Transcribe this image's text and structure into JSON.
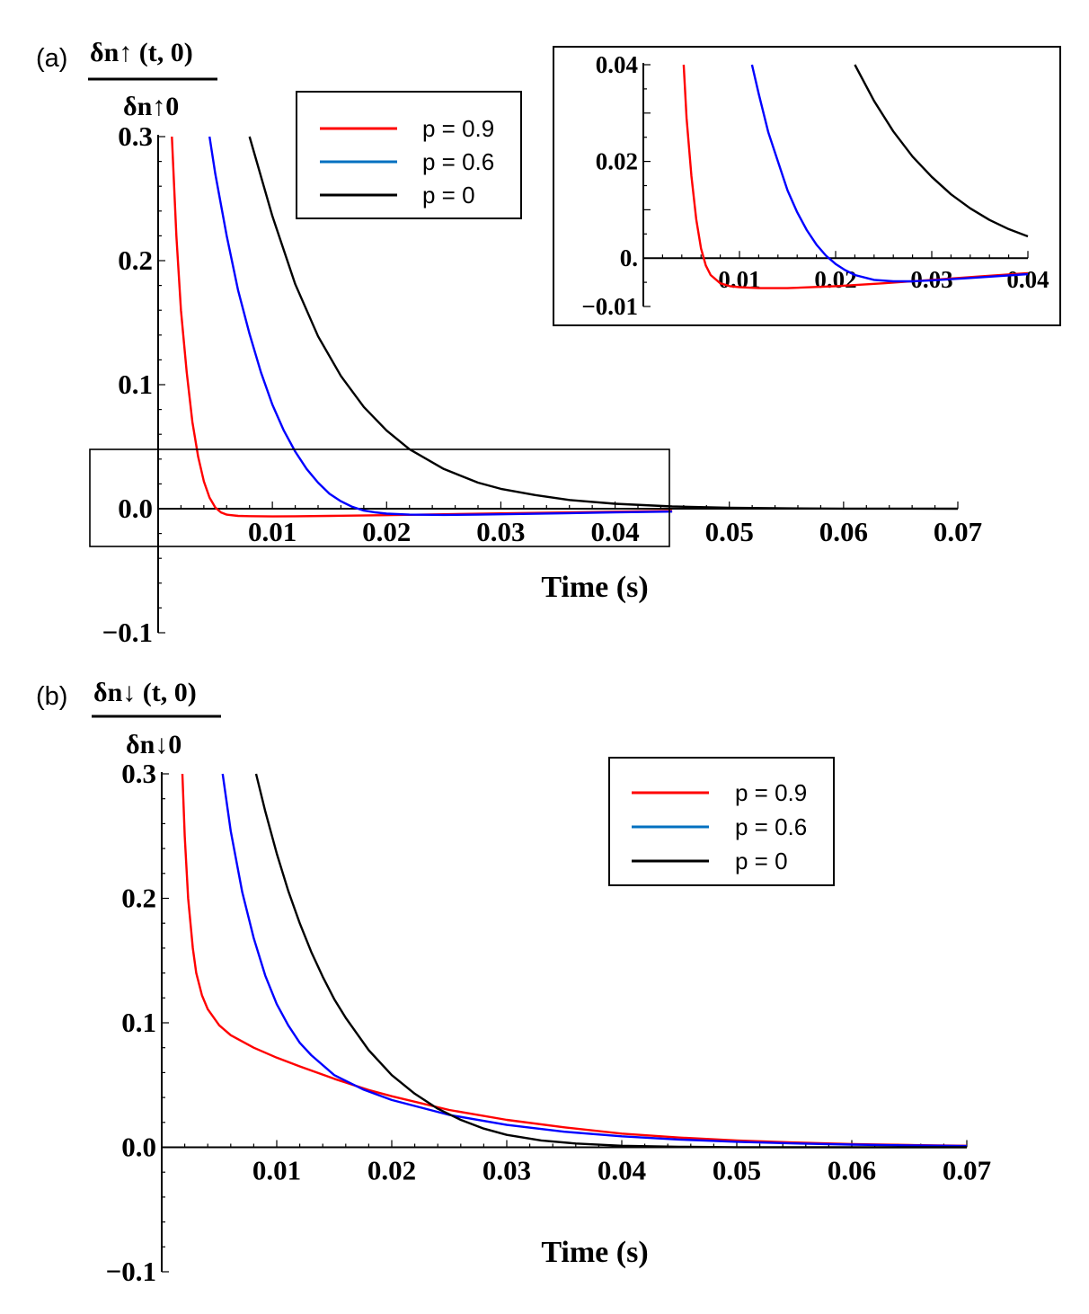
{
  "chart_data": [
    {
      "type": "line",
      "id": "panel-a",
      "panel_label": "(a)",
      "ylabel": {
        "numerator": "δn↑ (t, 0)",
        "denominator": "δn↑0"
      },
      "xlabel": "Time (s)",
      "xlim": [
        0,
        0.07
      ],
      "ylim": [
        -0.1,
        0.3
      ],
      "x_ticks": [
        "0.01",
        "0.02",
        "0.03",
        "0.04",
        "0.05",
        "0.06",
        "0.07"
      ],
      "y_ticks": [
        "0.3",
        "0.2",
        "0.1",
        "0.0",
        "−0.1"
      ],
      "legend": {
        "position": "top-center",
        "entries": [
          "p = 0.9",
          "p = 0.6",
          "p = 0"
        ]
      },
      "zoom_box": {
        "x_range": [
          -0.006,
          0.045
        ],
        "y_range": [
          -0.03,
          0.048
        ]
      },
      "series": [
        {
          "name": "p = 0.9",
          "color": "#ff0000",
          "x": [
            0.0012,
            0.0016,
            0.002,
            0.0025,
            0.003,
            0.0035,
            0.004,
            0.0045,
            0.005,
            0.0055,
            0.006,
            0.007,
            0.008,
            0.01,
            0.012,
            0.015,
            0.02,
            0.025,
            0.03,
            0.035,
            0.04,
            0.045
          ],
          "y": [
            0.3,
            0.22,
            0.16,
            0.11,
            0.07,
            0.042,
            0.022,
            0.009,
            0.001,
            -0.003,
            -0.0048,
            -0.0058,
            -0.006,
            -0.0062,
            -0.0061,
            -0.0058,
            -0.0052,
            -0.0045,
            -0.0038,
            -0.0031,
            -0.0024,
            -0.0018
          ]
        },
        {
          "name": "p = 0.6",
          "color": "#0000ff",
          "x": [
            0.0045,
            0.005,
            0.006,
            0.007,
            0.008,
            0.009,
            0.01,
            0.011,
            0.012,
            0.013,
            0.014,
            0.015,
            0.016,
            0.017,
            0.018,
            0.019,
            0.02,
            0.022,
            0.025,
            0.028,
            0.03,
            0.035,
            0.04,
            0.045
          ],
          "y": [
            0.3,
            0.27,
            0.22,
            0.176,
            0.141,
            0.11,
            0.084,
            0.063,
            0.046,
            0.032,
            0.021,
            0.012,
            0.006,
            0.0015,
            -0.0015,
            -0.003,
            -0.004,
            -0.0048,
            -0.005,
            -0.0048,
            -0.0045,
            -0.0038,
            -0.003,
            -0.0023
          ]
        },
        {
          "name": "p = 0",
          "color": "#000000",
          "x": [
            0.008,
            0.01,
            0.012,
            0.014,
            0.016,
            0.018,
            0.02,
            0.022,
            0.025,
            0.028,
            0.03,
            0.033,
            0.036,
            0.04,
            0.045,
            0.05,
            0.055,
            0.06,
            0.07
          ],
          "y": [
            0.3,
            0.236,
            0.181,
            0.139,
            0.107,
            0.082,
            0.063,
            0.048,
            0.032,
            0.021,
            0.016,
            0.011,
            0.007,
            0.004,
            0.0018,
            0.0008,
            0.0003,
            0.0001,
            0.0
          ]
        }
      ]
    },
    {
      "type": "line",
      "id": "panel-a-inset",
      "xlim": [
        0.0,
        0.04
      ],
      "ylim": [
        -0.01,
        0.04
      ],
      "x_ticks": [
        "0.01",
        "0.02",
        "0.03",
        "0.04"
      ],
      "y_ticks": [
        "0.04",
        "0.02",
        "0.",
        "−0.01"
      ],
      "series": [
        {
          "name": "p = 0.9",
          "color": "#ff0000",
          "x": [
            0.0042,
            0.0045,
            0.005,
            0.0055,
            0.006,
            0.0065,
            0.007,
            0.008,
            0.009,
            0.01,
            0.012,
            0.015,
            0.02,
            0.025,
            0.03,
            0.035,
            0.04
          ],
          "y": [
            0.04,
            0.029,
            0.017,
            0.008,
            0.002,
            -0.0015,
            -0.0035,
            -0.0052,
            -0.0058,
            -0.006,
            -0.0062,
            -0.0062,
            -0.0058,
            -0.0052,
            -0.0045,
            -0.0038,
            -0.0031
          ]
        },
        {
          "name": "p = 0.6",
          "color": "#0000ff",
          "x": [
            0.0113,
            0.012,
            0.013,
            0.014,
            0.015,
            0.016,
            0.017,
            0.018,
            0.019,
            0.02,
            0.021,
            0.022,
            0.024,
            0.026,
            0.028,
            0.03,
            0.034,
            0.04
          ],
          "y": [
            0.04,
            0.034,
            0.026,
            0.02,
            0.014,
            0.0095,
            0.0058,
            0.0028,
            0.0005,
            -0.0012,
            -0.0025,
            -0.0035,
            -0.0045,
            -0.0048,
            -0.0048,
            -0.0046,
            -0.0041,
            -0.0033
          ]
        },
        {
          "name": "p = 0",
          "color": "#000000",
          "x": [
            0.022,
            0.024,
            0.026,
            0.028,
            0.03,
            0.032,
            0.034,
            0.036,
            0.038,
            0.04
          ],
          "y": [
            0.04,
            0.0325,
            0.0262,
            0.021,
            0.0168,
            0.0132,
            0.0103,
            0.0079,
            0.006,
            0.0045
          ]
        }
      ]
    },
    {
      "type": "line",
      "id": "panel-b",
      "panel_label": "(b)",
      "ylabel": {
        "numerator": "δn↓ (t, 0)",
        "denominator": "δn↓0"
      },
      "xlabel": "Time (s)",
      "xlim": [
        0,
        0.07
      ],
      "ylim": [
        -0.1,
        0.3
      ],
      "x_ticks": [
        "0.01",
        "0.02",
        "0.03",
        "0.04",
        "0.05",
        "0.06",
        "0.07"
      ],
      "y_ticks": [
        "0.3",
        "0.2",
        "0.1",
        "0.0",
        "−0.1"
      ],
      "legend": {
        "position": "top-right",
        "entries": [
          "p = 0.9",
          "p = 0.6",
          "p = 0"
        ]
      },
      "series": [
        {
          "name": "p = 0.9",
          "color": "#ff0000",
          "x": [
            0.0018,
            0.002,
            0.0023,
            0.0027,
            0.003,
            0.0035,
            0.004,
            0.005,
            0.006,
            0.008,
            0.01,
            0.012,
            0.015,
            0.018,
            0.02,
            0.025,
            0.03,
            0.035,
            0.04,
            0.045,
            0.05,
            0.055,
            0.06,
            0.065,
            0.07
          ],
          "y": [
            0.3,
            0.25,
            0.2,
            0.16,
            0.14,
            0.122,
            0.111,
            0.098,
            0.09,
            0.08,
            0.072,
            0.065,
            0.055,
            0.046,
            0.041,
            0.03,
            0.022,
            0.016,
            0.011,
            0.0078,
            0.0055,
            0.0038,
            0.0026,
            0.0018,
            0.0012
          ]
        },
        {
          "name": "p = 0.6",
          "color": "#0000ff",
          "x": [
            0.0053,
            0.006,
            0.007,
            0.008,
            0.009,
            0.01,
            0.011,
            0.012,
            0.013,
            0.015,
            0.0175,
            0.02,
            0.025,
            0.03,
            0.035,
            0.04,
            0.045,
            0.05,
            0.055,
            0.06,
            0.065,
            0.07
          ],
          "y": [
            0.3,
            0.254,
            0.205,
            0.168,
            0.138,
            0.115,
            0.098,
            0.084,
            0.074,
            0.058,
            0.0465,
            0.038,
            0.026,
            0.018,
            0.0125,
            0.0088,
            0.0062,
            0.0044,
            0.0031,
            0.0022,
            0.0015,
            0.001
          ]
        },
        {
          "name": "p = 0",
          "color": "#000000",
          "x": [
            0.0082,
            0.009,
            0.01,
            0.011,
            0.012,
            0.013,
            0.014,
            0.015,
            0.016,
            0.018,
            0.02,
            0.022,
            0.024,
            0.026,
            0.028,
            0.03,
            0.033,
            0.036,
            0.04,
            0.045,
            0.05,
            0.055,
            0.06,
            0.07
          ],
          "y": [
            0.3,
            0.27,
            0.236,
            0.206,
            0.18,
            0.157,
            0.137,
            0.119,
            0.104,
            0.078,
            0.058,
            0.043,
            0.031,
            0.022,
            0.015,
            0.01,
            0.0055,
            0.003,
            0.0012,
            0.0004,
            0.0001,
            0.0,
            0.0,
            0.0
          ]
        }
      ]
    }
  ]
}
